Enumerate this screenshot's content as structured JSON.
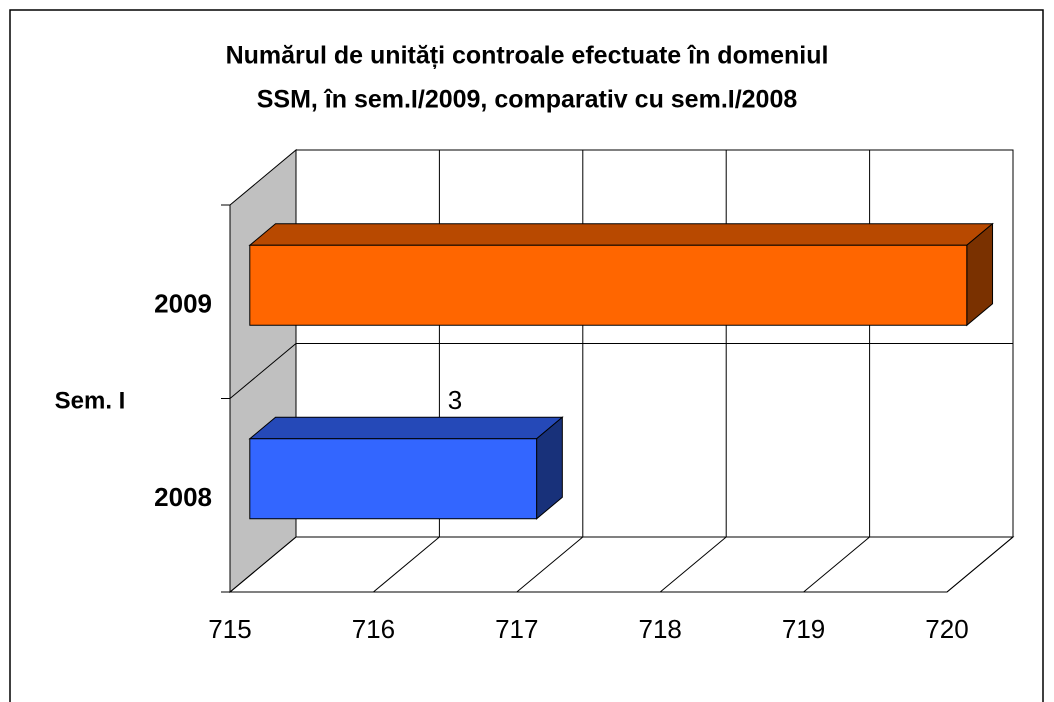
{
  "chart_data": {
    "type": "bar3d_horizontal",
    "title": [
      "Numărul de unități controale efectuate în domeniul",
      "SSM, în  sem.I/2009, comparativ cu sem.I/2008"
    ],
    "y_label": "Sem. I",
    "categories": [
      "2008",
      "2009"
    ],
    "values": [
      717,
      720
    ],
    "colors": [
      "#3366ff",
      "#ff6600"
    ],
    "xlim": [
      715,
      720
    ],
    "xticks": [
      715,
      716,
      717,
      718,
      719,
      720
    ],
    "annotations": [
      "3"
    ],
    "grid": true
  }
}
